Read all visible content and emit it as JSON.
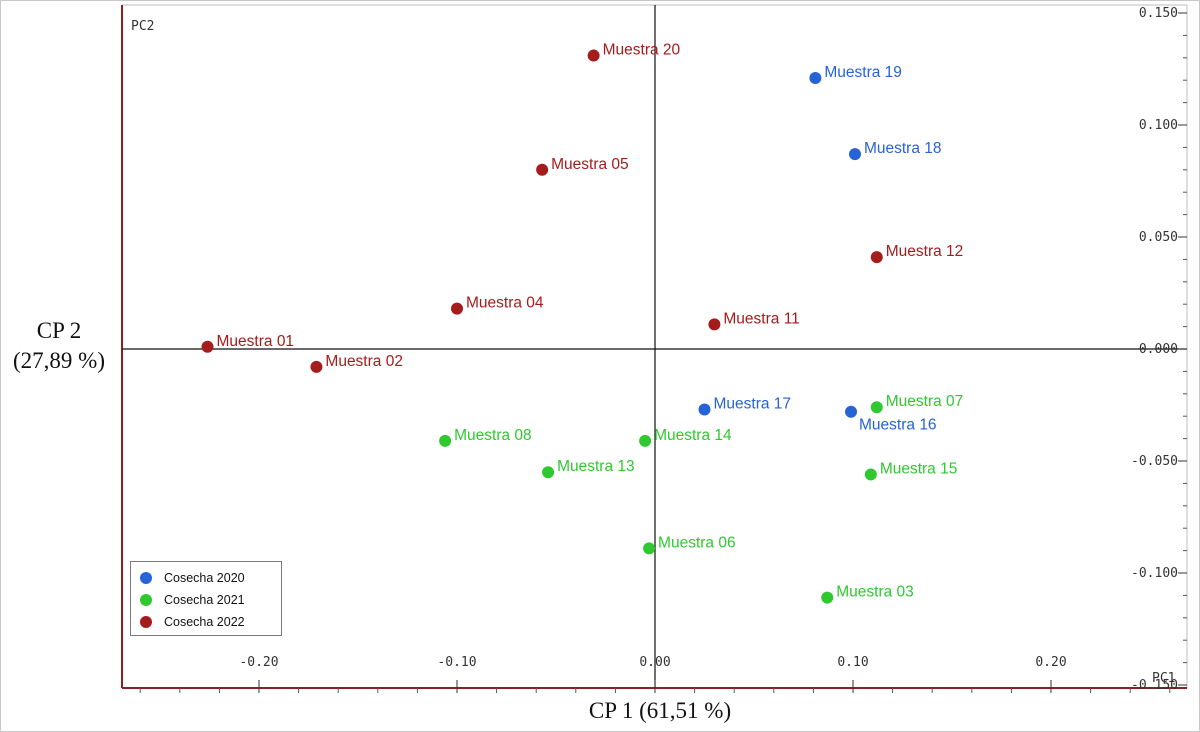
{
  "chart_data": {
    "type": "scatter",
    "title": "",
    "xlabel": "CP 1 (61,51 %)",
    "ylabel_line1": "CP 2",
    "ylabel_line2": "(27,89 %)",
    "x_axis_tag": "PC1",
    "y_axis_tag": "PC2",
    "xlim": [
      -0.27,
      0.27
    ],
    "ylim": [
      -0.155,
      0.155
    ],
    "xticks": [
      -0.2,
      -0.1,
      0.0,
      0.1,
      0.2
    ],
    "xtick_labels": [
      "-0.20",
      "-0.10",
      "0.00",
      "0.10",
      "0.20"
    ],
    "yticks": [
      0.15,
      0.1,
      0.05,
      0.0,
      -0.05,
      -0.1,
      -0.15
    ],
    "ytick_labels": [
      "0.150",
      "0.100",
      "0.050",
      "0.000",
      "-0.050",
      "-0.100",
      "-0.150"
    ],
    "grid": false,
    "legend_position": "bottom-left",
    "series": [
      {
        "name": "Cosecha 2020",
        "color": "#2563d6",
        "points": [
          {
            "label": "Muestra 19",
            "x": 0.081,
            "y": 0.121
          },
          {
            "label": "Muestra 18",
            "x": 0.101,
            "y": 0.087
          },
          {
            "label": "Muestra 17",
            "x": 0.025,
            "y": -0.027
          },
          {
            "label": "Muestra 16",
            "x": 0.099,
            "y": -0.028
          }
        ]
      },
      {
        "name": "Cosecha 2021",
        "color": "#2fc92f",
        "points": [
          {
            "label": "Muestra 07",
            "x": 0.112,
            "y": -0.026
          },
          {
            "label": "Muestra 08",
            "x": -0.106,
            "y": -0.041
          },
          {
            "label": "Muestra 14",
            "x": -0.005,
            "y": -0.041
          },
          {
            "label": "Muestra 13",
            "x": -0.054,
            "y": -0.055
          },
          {
            "label": "Muestra 15",
            "x": 0.109,
            "y": -0.056
          },
          {
            "label": "Muestra 06",
            "x": -0.003,
            "y": -0.089
          },
          {
            "label": "Muestra 03",
            "x": 0.087,
            "y": -0.111
          }
        ]
      },
      {
        "name": "Cosecha 2022",
        "color": "#a51c1c",
        "points": [
          {
            "label": "Muestra 20",
            "x": -0.031,
            "y": 0.131
          },
          {
            "label": "Muestra 05",
            "x": -0.057,
            "y": 0.08
          },
          {
            "label": "Muestra 12",
            "x": 0.112,
            "y": 0.041
          },
          {
            "label": "Muestra 04",
            "x": -0.1,
            "y": 0.018
          },
          {
            "label": "Muestra 11",
            "x": 0.03,
            "y": 0.011
          },
          {
            "label": "Muestra 01",
            "x": -0.226,
            "y": 0.001
          },
          {
            "label": "Muestra 02",
            "x": -0.171,
            "y": -0.008
          }
        ]
      }
    ]
  }
}
